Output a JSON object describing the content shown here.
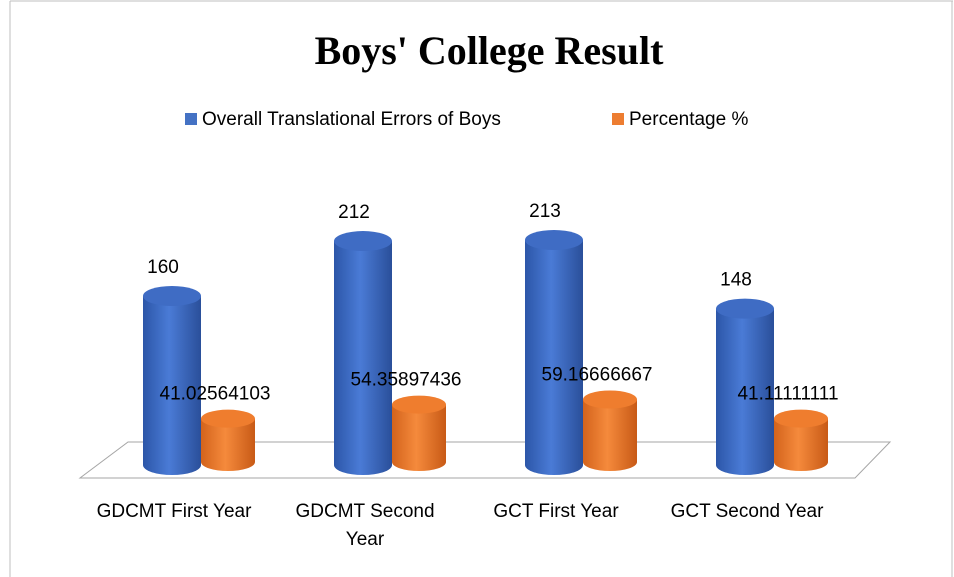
{
  "chart_data": {
    "type": "bar3d",
    "title": "Boys' College Result",
    "categories": [
      "GDCMT First Year",
      "GDCMT Second Year",
      "GCT First Year",
      "GCT Second Year"
    ],
    "series": [
      {
        "name": "Overall Translational Errors of Boys",
        "color": "#4472c4",
        "values": [
          160,
          212,
          213,
          148
        ]
      },
      {
        "name": "Percentage %",
        "color": "#ed7d31",
        "values": [
          41.02564103,
          54.35897436,
          59.16666667,
          41.11111111
        ]
      }
    ]
  }
}
